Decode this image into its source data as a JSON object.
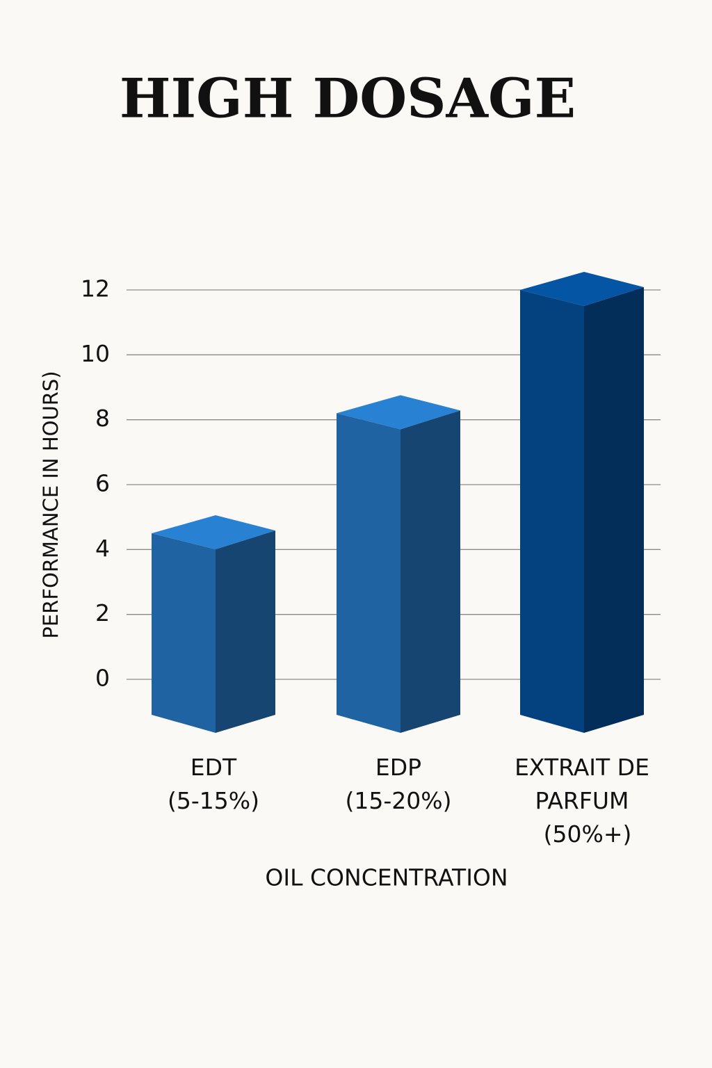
{
  "chart_data": {
    "type": "bar3d",
    "title": "HIGH DOSAGE",
    "y_label": "PERFORMANCE IN HOURS)",
    "x_label": "OIL CONCENTRATION",
    "categories": [
      "EDT\n(5-15%)",
      "EDP\n(15-20%)",
      "EXTRAIT DE\nPARFUM\n(50%+)"
    ],
    "values": [
      4.5,
      8.2,
      12
    ],
    "colors": [
      "#1f63a2",
      "#1f63a2",
      "#03427f"
    ],
    "ylim": [
      0,
      12
    ],
    "yticks": [
      0,
      2,
      4,
      6,
      8,
      10,
      12
    ],
    "grid": true
  }
}
